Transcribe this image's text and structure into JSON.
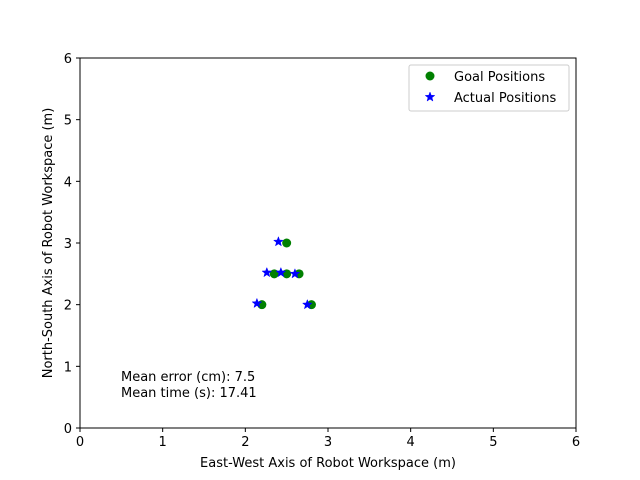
{
  "chart_data": {
    "type": "scatter",
    "xlabel": "East-West Axis of Robot Workspace (m)",
    "ylabel": "North-South Axis of Robot Workspace (m)",
    "xlim": [
      0,
      6
    ],
    "ylim": [
      0,
      6
    ],
    "xticks": [
      0,
      1,
      2,
      3,
      4,
      5,
      6
    ],
    "yticks": [
      0,
      1,
      2,
      3,
      4,
      5,
      6
    ],
    "grid": false,
    "legend": {
      "placement": "top-right"
    },
    "series": [
      {
        "name": "Goal Positions",
        "marker": "circle",
        "color": "#008000",
        "x": [
          2.2,
          2.35,
          2.5,
          2.65,
          2.8,
          2.5
        ],
        "y": [
          2.0,
          2.5,
          2.5,
          2.5,
          2.0,
          3.0
        ]
      },
      {
        "name": "Actual Positions",
        "marker": "star",
        "color": "#0000ff",
        "x": [
          2.14,
          2.26,
          2.43,
          2.6,
          2.75,
          2.4
        ],
        "y": [
          2.02,
          2.52,
          2.52,
          2.5,
          2.0,
          3.02
        ]
      }
    ],
    "annotations": [
      "Mean error (cm): 7.5",
      "Mean time (s): 17.41"
    ]
  }
}
